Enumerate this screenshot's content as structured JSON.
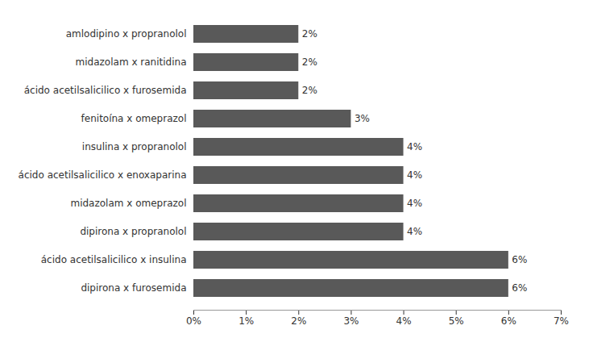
{
  "chart_data": {
    "type": "bar",
    "orientation": "horizontal",
    "categories": [
      "dipirona x furosemida",
      "ácido acetilsalicilico x insulina",
      "dipirona x propranolol",
      "midazolam x omeprazol",
      "ácido acetilsalicilico x enoxaparina",
      "insulina x propranolol",
      "fenitoína x omeprazol",
      "ácido acetilsalicilico x furosemida",
      "midazolam x ranitidina",
      "amlodipino x propranolol"
    ],
    "values": [
      6,
      6,
      4,
      4,
      4,
      4,
      3,
      2,
      2,
      2
    ],
    "value_labels": [
      "6%",
      "6%",
      "4%",
      "4%",
      "4%",
      "4%",
      "3%",
      "2%",
      "2%",
      "2%"
    ],
    "data_labels": true,
    "color": "#595959",
    "xlim": [
      0,
      7
    ],
    "xticks": [
      {
        "value": 0,
        "label": "0%"
      },
      {
        "value": 1,
        "label": "1%"
      },
      {
        "value": 2,
        "label": "2%"
      },
      {
        "value": 3,
        "label": "3%"
      },
      {
        "value": 4,
        "label": "4%"
      },
      {
        "value": 5,
        "label": "5%"
      },
      {
        "value": 6,
        "label": "6%"
      },
      {
        "value": 7,
        "label": "7%"
      }
    ],
    "grid": false
  }
}
